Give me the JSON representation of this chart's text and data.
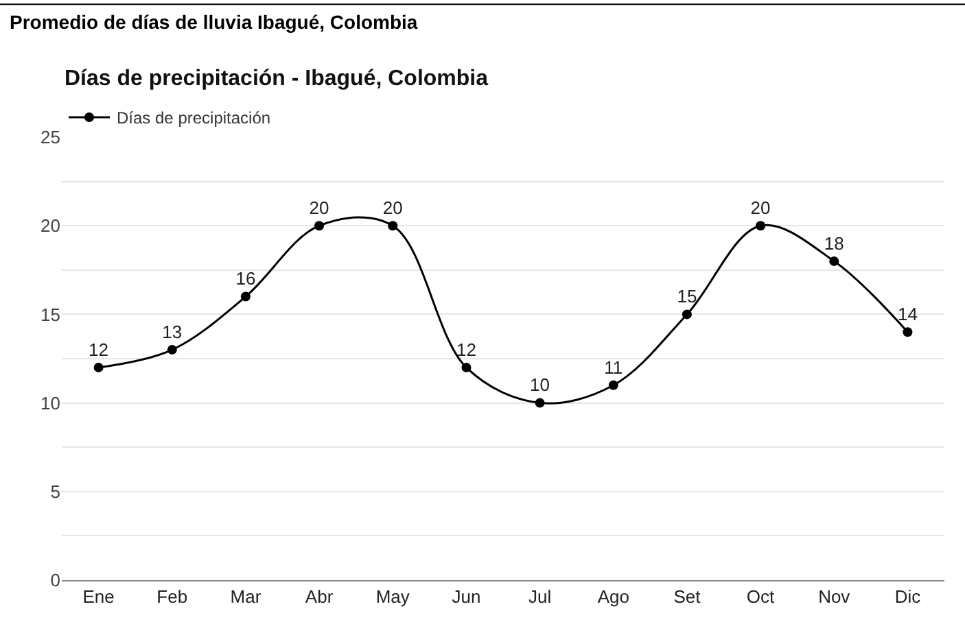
{
  "chart_data": {
    "type": "line",
    "title": "Promedio de días de lluvia Ibagué, Colombia",
    "subtitle": "Días de precipitación - Ibagué, Colombia",
    "categories": [
      "Ene",
      "Feb",
      "Mar",
      "Abr",
      "May",
      "Jun",
      "Jul",
      "Ago",
      "Set",
      "Oct",
      "Nov",
      "Dic"
    ],
    "series": [
      {
        "name": "Días de precipitación",
        "color": "#000000",
        "values": [
          12,
          13,
          16,
          20,
          20,
          12,
          10,
          11,
          15,
          20,
          18,
          14
        ]
      }
    ],
    "ylim": [
      0,
      25
    ],
    "yticks": [
      0,
      {
        "value": 2.5,
        "label": null
      },
      5,
      {
        "value": 7.5,
        "label": null
      },
      10,
      {
        "value": 12.5,
        "label": null
      },
      15,
      {
        "value": 17.5,
        "label": null
      },
      20,
      {
        "value": 22.5,
        "label": null
      },
      25
    ],
    "grid": "y",
    "legend": "top left",
    "marker": "circle",
    "line_style": "solid",
    "data_labels": true
  }
}
